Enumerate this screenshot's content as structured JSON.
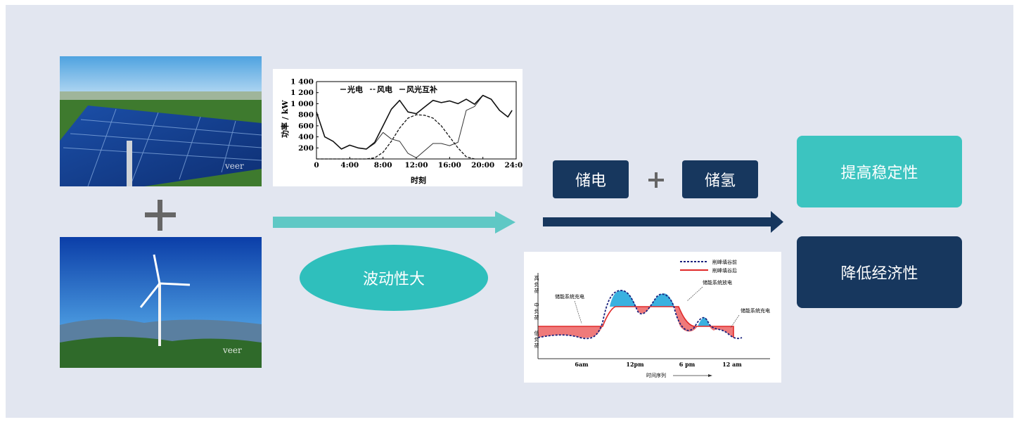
{
  "labels": {
    "fluctuation": "波动性大",
    "storage_power": "储电",
    "storage_hydrogen": "储氢",
    "improve_stability": "提高稳定性",
    "reduce_cost": "降低经济性"
  },
  "photos": {
    "solar_watermark": "veer",
    "wind_watermark": "veer"
  },
  "colors": {
    "teal": "#3cc4c0",
    "navy": "#17375e",
    "background": "#e2e6f0"
  },
  "chart_data": [
    {
      "type": "line",
      "ylabel": "功率 / kW",
      "xlabel": "时刻",
      "x_ticks": [
        "0",
        "4:00",
        "8:00",
        "12:00",
        "16:00",
        "20:00",
        "24:00"
      ],
      "y_ticks": [
        "200",
        "400",
        "600",
        "800",
        "1 000",
        "1 200",
        "1 400"
      ],
      "ylim": [
        0,
        1400
      ],
      "xlim": [
        0,
        24
      ],
      "legend": [
        "光电",
        "风电",
        "风光互补"
      ],
      "series": [
        {
          "name": "光电",
          "style": "dashed",
          "x": [
            0,
            6,
            7,
            8,
            9,
            10,
            11,
            12,
            13,
            14,
            15,
            16,
            17,
            18,
            19
          ],
          "y": [
            0,
            0,
            20,
            120,
            320,
            560,
            740,
            800,
            790,
            740,
            600,
            400,
            200,
            40,
            0
          ]
        },
        {
          "name": "风电",
          "style": "thin",
          "x": [
            0,
            1,
            2,
            3,
            4,
            5,
            6,
            7,
            8,
            9,
            10,
            11,
            12,
            13,
            14,
            15,
            16,
            17,
            18,
            19,
            20,
            21,
            22,
            23,
            23.5
          ],
          "y": [
            850,
            400,
            320,
            180,
            250,
            200,
            180,
            280,
            480,
            360,
            320,
            100,
            20,
            150,
            280,
            280,
            240,
            300,
            880,
            950,
            1150,
            1080,
            880,
            760,
            880
          ]
        },
        {
          "name": "风光互补",
          "style": "solid",
          "x": [
            0,
            1,
            2,
            3,
            4,
            5,
            6,
            7,
            8,
            9,
            10,
            11,
            12,
            13,
            14,
            15,
            16,
            17,
            18,
            19,
            20,
            21,
            22,
            23,
            23.5
          ],
          "y": [
            850,
            400,
            320,
            180,
            250,
            200,
            180,
            300,
            600,
            900,
            1060,
            850,
            820,
            940,
            1060,
            1020,
            1050,
            1000,
            1080,
            990,
            1150,
            1080,
            880,
            760,
            880
          ]
        }
      ]
    },
    {
      "type": "area",
      "y_labels": [
        "高负荷",
        "中负荷",
        "低负荷"
      ],
      "x_ticks": [
        "6am",
        "12pm",
        "6 pm",
        "12 am"
      ],
      "xlabel": "时间序列",
      "legend": [
        "削峰填谷前",
        "削峰填谷后"
      ],
      "annotations": [
        "储能系统充电",
        "储能系统放电",
        "储能系统充电"
      ]
    }
  ]
}
